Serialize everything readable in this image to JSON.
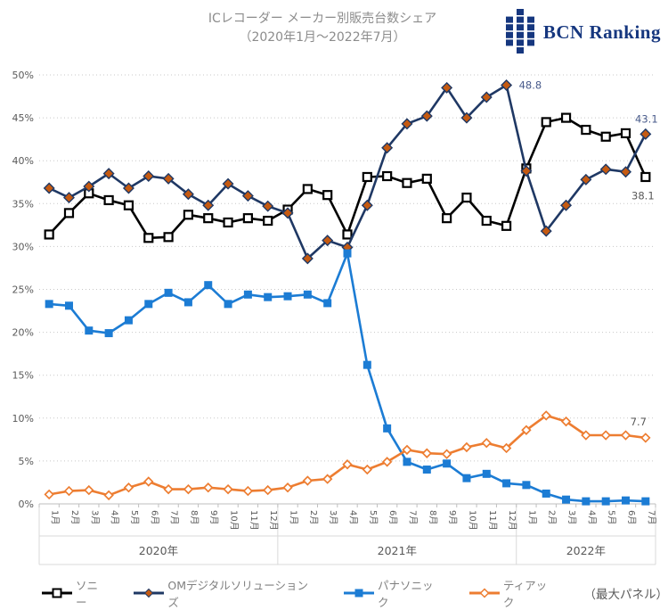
{
  "header": {
    "title_line1": "ICレコーダー メーカー別販売台数シェア",
    "title_line2": "（2020年1月～2022年7月）",
    "logo_text": "BCN Ranking",
    "logo_color": "#16377F"
  },
  "chart_data": {
    "type": "line",
    "months": [
      "1月",
      "2月",
      "3月",
      "4月",
      "5月",
      "6月",
      "7月",
      "8月",
      "9月",
      "10月",
      "11月",
      "12月",
      "1月",
      "2月",
      "3月",
      "4月",
      "5月",
      "6月",
      "7月",
      "8月",
      "9月",
      "10月",
      "11月",
      "12月",
      "1月",
      "2月",
      "3月",
      "4月",
      "5月",
      "6月",
      "7月"
    ],
    "year_groups": [
      {
        "label": "2020年",
        "count": 12
      },
      {
        "label": "2021年",
        "count": 12
      },
      {
        "label": "2022年",
        "count": 7
      }
    ],
    "ylim": [
      0,
      50
    ],
    "ytick_step": 5,
    "ytick_labels": [
      "0%",
      "5%",
      "10%",
      "15%",
      "20%",
      "25%",
      "30%",
      "35%",
      "40%",
      "45%",
      "50%"
    ],
    "grid": "dotted-horizontal",
    "legend_position": "bottom",
    "series": [
      {
        "key": "sony",
        "name": "ソニー",
        "color": "#000000",
        "marker": "square-open",
        "values": [
          31.4,
          33.9,
          36.2,
          35.4,
          34.8,
          31.0,
          31.1,
          33.7,
          33.3,
          32.8,
          33.3,
          33.0,
          34.3,
          36.7,
          36.0,
          31.4,
          38.1,
          38.2,
          37.4,
          37.9,
          33.3,
          35.7,
          33.0,
          32.4,
          39.1,
          44.5,
          45.0,
          43.6,
          42.8,
          43.2,
          38.1
        ]
      },
      {
        "key": "om-digital-solutions",
        "name": "OMデジタルソリューションズ",
        "color": "#1F3864",
        "marker": "diamond-filled",
        "marker_fill": "#C55A11",
        "values": [
          36.8,
          35.7,
          37.0,
          38.5,
          36.8,
          38.2,
          37.9,
          36.1,
          34.8,
          37.3,
          35.9,
          34.7,
          33.9,
          28.6,
          30.7,
          29.9,
          34.8,
          41.5,
          44.3,
          45.2,
          48.5,
          45.0,
          47.4,
          48.8,
          38.8,
          31.8,
          34.8,
          37.8,
          39.0,
          38.7,
          43.1
        ]
      },
      {
        "key": "panasonic",
        "name": "パナソニック",
        "color": "#1C7CD4",
        "marker": "square-filled",
        "values": [
          23.3,
          23.1,
          20.2,
          19.9,
          21.4,
          23.3,
          24.6,
          23.5,
          25.5,
          23.3,
          24.4,
          24.1,
          24.2,
          24.4,
          23.4,
          29.2,
          16.2,
          8.8,
          4.9,
          4.0,
          4.7,
          3.0,
          3.5,
          2.4,
          2.2,
          1.2,
          0.5,
          0.3,
          0.3,
          0.4,
          0.3
        ]
      },
      {
        "key": "teac",
        "name": "ティアック",
        "color": "#ED7D31",
        "marker": "diamond-open",
        "values": [
          1.1,
          1.5,
          1.6,
          1.0,
          1.9,
          2.6,
          1.7,
          1.7,
          1.9,
          1.7,
          1.5,
          1.6,
          1.9,
          2.7,
          2.9,
          4.6,
          4.0,
          4.9,
          6.3,
          5.9,
          5.8,
          6.6,
          7.1,
          6.5,
          8.6,
          10.3,
          9.6,
          8.0,
          8.0,
          8.0,
          7.7
        ]
      }
    ],
    "annotations": [
      {
        "text": "48.8",
        "series": 1,
        "point": 23,
        "color": "#4A5C8C"
      },
      {
        "text": "43.1",
        "series": 1,
        "point": 30,
        "color": "#4A5C8C"
      },
      {
        "text": "38.1",
        "series": 0,
        "point": 30,
        "color": "#595959"
      },
      {
        "text": "7.7",
        "series": 3,
        "point": 30,
        "color": "#595959"
      }
    ]
  },
  "legend": {
    "suffix": "（最大パネル）"
  }
}
